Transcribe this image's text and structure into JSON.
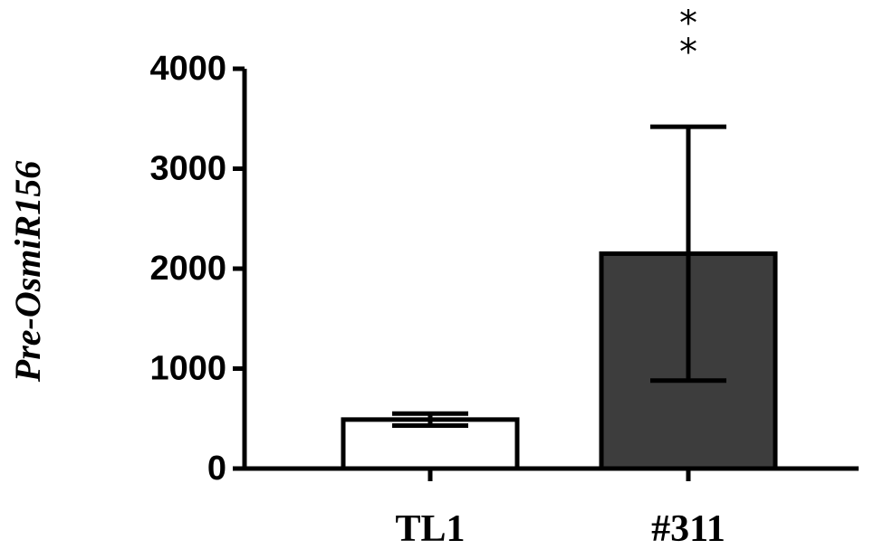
{
  "chart_data": {
    "type": "bar",
    "ylabel": "Pre-OsmiR156",
    "categories": [
      "TL1",
      "#311"
    ],
    "values": [
      490,
      2150
    ],
    "errors": [
      60,
      1270
    ],
    "colors": [
      "#ffffff",
      "#3d3d3d"
    ],
    "annotations": [
      null,
      "**"
    ],
    "ylim": [
      0,
      4000
    ],
    "yticks": [
      0,
      1000,
      2000,
      3000,
      4000
    ]
  }
}
